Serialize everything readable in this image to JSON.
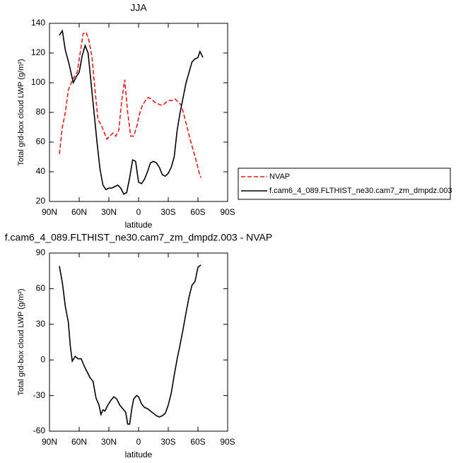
{
  "chart_data": [
    {
      "type": "line",
      "title": "JJA",
      "x_label": "latitude",
      "y_label": "Total grd-box cloud LWP (g/m²)",
      "xlim": [
        90,
        -90
      ],
      "xticks": [
        {
          "value": 90,
          "label": "90N"
        },
        {
          "value": 60,
          "label": "60N"
        },
        {
          "value": 30,
          "label": "30N"
        },
        0,
        {
          "value": -30,
          "label": "30S"
        },
        {
          "value": -60,
          "label": "60S"
        },
        {
          "value": -90,
          "label": "90S"
        }
      ],
      "ylim": [
        20,
        140
      ],
      "yticks": [
        20,
        40,
        60,
        80,
        100,
        120,
        140
      ],
      "legend": "right",
      "series": [
        {
          "name": "NVAP",
          "color": "#e41a1c",
          "dashed": true,
          "x": [
            80,
            77,
            74,
            71,
            68,
            65,
            62,
            59,
            56,
            53,
            50,
            47,
            44,
            41,
            38,
            35,
            32,
            29,
            26,
            23,
            20,
            17,
            14,
            11,
            8,
            5,
            2,
            -1,
            -4,
            -7,
            -10,
            -13,
            -16,
            -19,
            -22,
            -25,
            -28,
            -31,
            -34,
            -37,
            -40,
            -43,
            -46,
            -49,
            -52,
            -55,
            -58,
            -61,
            -63
          ],
          "values": [
            52,
            70,
            80,
            95,
            100,
            104,
            107,
            120,
            133,
            134,
            128,
            117,
            95,
            75,
            72,
            67,
            62,
            64,
            66,
            64,
            68,
            88,
            102,
            80,
            64,
            64,
            70,
            79,
            85,
            88,
            90,
            89,
            87,
            86,
            85,
            85,
            87,
            88,
            88,
            89,
            87,
            85,
            78,
            70,
            62,
            55,
            48,
            40,
            36
          ]
        },
        {
          "name": "f.cam6_4_089.FLTHIST_ne30.cam7_zm_dmpdz.003",
          "color": "#000000",
          "dashed": false,
          "x": [
            80,
            77,
            74,
            70,
            66,
            63,
            60,
            57,
            54,
            51,
            48,
            45,
            42,
            39,
            36,
            33,
            30,
            27,
            24,
            21,
            18,
            15,
            12,
            9,
            6,
            3,
            0,
            -3,
            -6,
            -9,
            -12,
            -15,
            -18,
            -21,
            -24,
            -27,
            -30,
            -33,
            -36,
            -39,
            -42,
            -45,
            -48,
            -51,
            -54,
            -57,
            -60,
            -62,
            -65
          ],
          "values": [
            132,
            135,
            122,
            112,
            100,
            104,
            107,
            118,
            125,
            120,
            100,
            80,
            60,
            42,
            31,
            28,
            29,
            29,
            30,
            31,
            29,
            25,
            26,
            36,
            48,
            47,
            33,
            32,
            35,
            40,
            46,
            47,
            46,
            43,
            38,
            37,
            39,
            43,
            50,
            68,
            80,
            90,
            100,
            107,
            114,
            116,
            117,
            121,
            117
          ]
        }
      ]
    },
    {
      "type": "line",
      "title": "f.cam6_4_089.FLTHIST_ne30.cam7_zm_dmpdz.003 - NVAP",
      "x_label": "latitude",
      "y_label": "Total grd-box cloud LWP (g/m²)",
      "xlim": [
        90,
        -90
      ],
      "xticks": [
        {
          "value": 90,
          "label": "90N"
        },
        {
          "value": 60,
          "label": "60N"
        },
        {
          "value": 30,
          "label": "30N"
        },
        0,
        {
          "value": -30,
          "label": "30S"
        },
        {
          "value": -60,
          "label": "60S"
        },
        {
          "value": -90,
          "label": "90S"
        }
      ],
      "ylim": [
        -60,
        90
      ],
      "yticks": [
        -60,
        -30,
        0,
        30,
        60,
        90
      ],
      "series": [
        {
          "color": "#000000",
          "dashed": false,
          "x": [
            80,
            77,
            74,
            71,
            69,
            67,
            64,
            61,
            58,
            55,
            52,
            49,
            46,
            43,
            40,
            38,
            36,
            34,
            31,
            28,
            25,
            22,
            19,
            16,
            13,
            11,
            9,
            7,
            5,
            2,
            0,
            -3,
            -6,
            -9,
            -12,
            -15,
            -18,
            -21,
            -24,
            -27,
            -30,
            -33,
            -36,
            -39,
            -42,
            -45,
            -48,
            -51,
            -54,
            -57,
            -60,
            -63
          ],
          "values": [
            79,
            65,
            45,
            32,
            12,
            -1,
            3,
            1,
            1,
            -5,
            -10,
            -15,
            -18,
            -32,
            -38,
            -46,
            -42,
            -43,
            -38,
            -34,
            -31,
            -33,
            -38,
            -41,
            -44,
            -54,
            -54,
            -42,
            -33,
            -30,
            -31,
            -37,
            -40,
            -41,
            -43,
            -45,
            -47,
            -48,
            -47,
            -45,
            -38,
            -28,
            -13,
            1,
            13,
            26,
            40,
            53,
            63,
            66,
            78,
            80
          ]
        }
      ]
    }
  ]
}
